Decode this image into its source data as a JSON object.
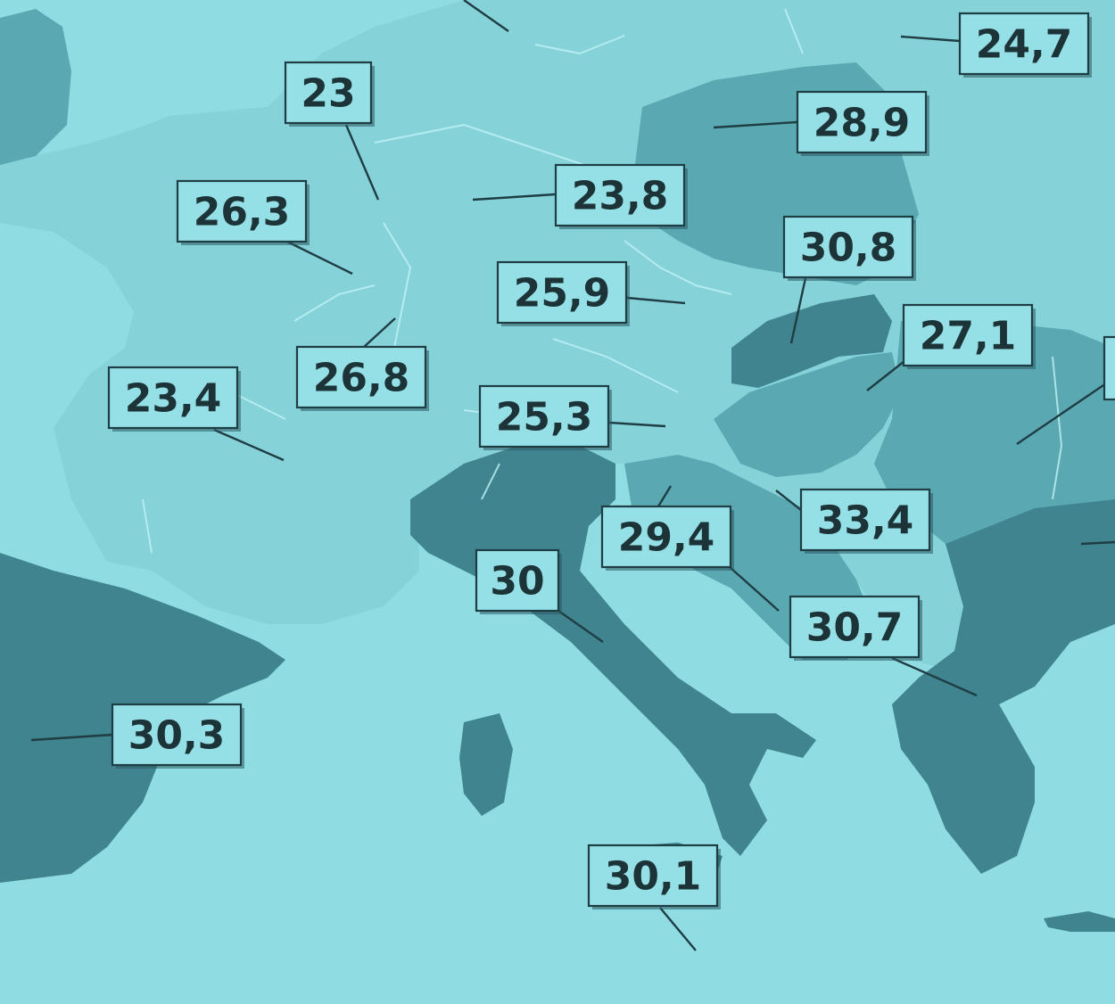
{
  "map": {
    "colors": {
      "sea": "#8fdde3",
      "light": "#86d2d9",
      "mid": "#5aa9b2",
      "dark": "#3f848e",
      "label_fill": "#95e0e6",
      "ink": "#1c3338"
    },
    "labels": [
      {
        "id": "uk-ireland",
        "value": "23"
      },
      {
        "id": "belgium",
        "value": "26,3"
      },
      {
        "id": "luxembourg",
        "value": "26,8"
      },
      {
        "id": "france",
        "value": "23,4"
      },
      {
        "id": "germany",
        "value": "23,8"
      },
      {
        "id": "czechia",
        "value": "25,9"
      },
      {
        "id": "austria",
        "value": "25,3"
      },
      {
        "id": "poland",
        "value": "28,9"
      },
      {
        "id": "lithuania",
        "value": "24,7"
      },
      {
        "id": "slovakia",
        "value": "30,8"
      },
      {
        "id": "hungary",
        "value": "27,1"
      },
      {
        "id": "slovenia",
        "value": "29,4"
      },
      {
        "id": "croatia",
        "value": "33,4"
      },
      {
        "id": "italy",
        "value": "30"
      },
      {
        "id": "bosnia",
        "value": "30,7"
      },
      {
        "id": "spain",
        "value": "30,3"
      },
      {
        "id": "malta",
        "value": "30,1"
      }
    ]
  }
}
